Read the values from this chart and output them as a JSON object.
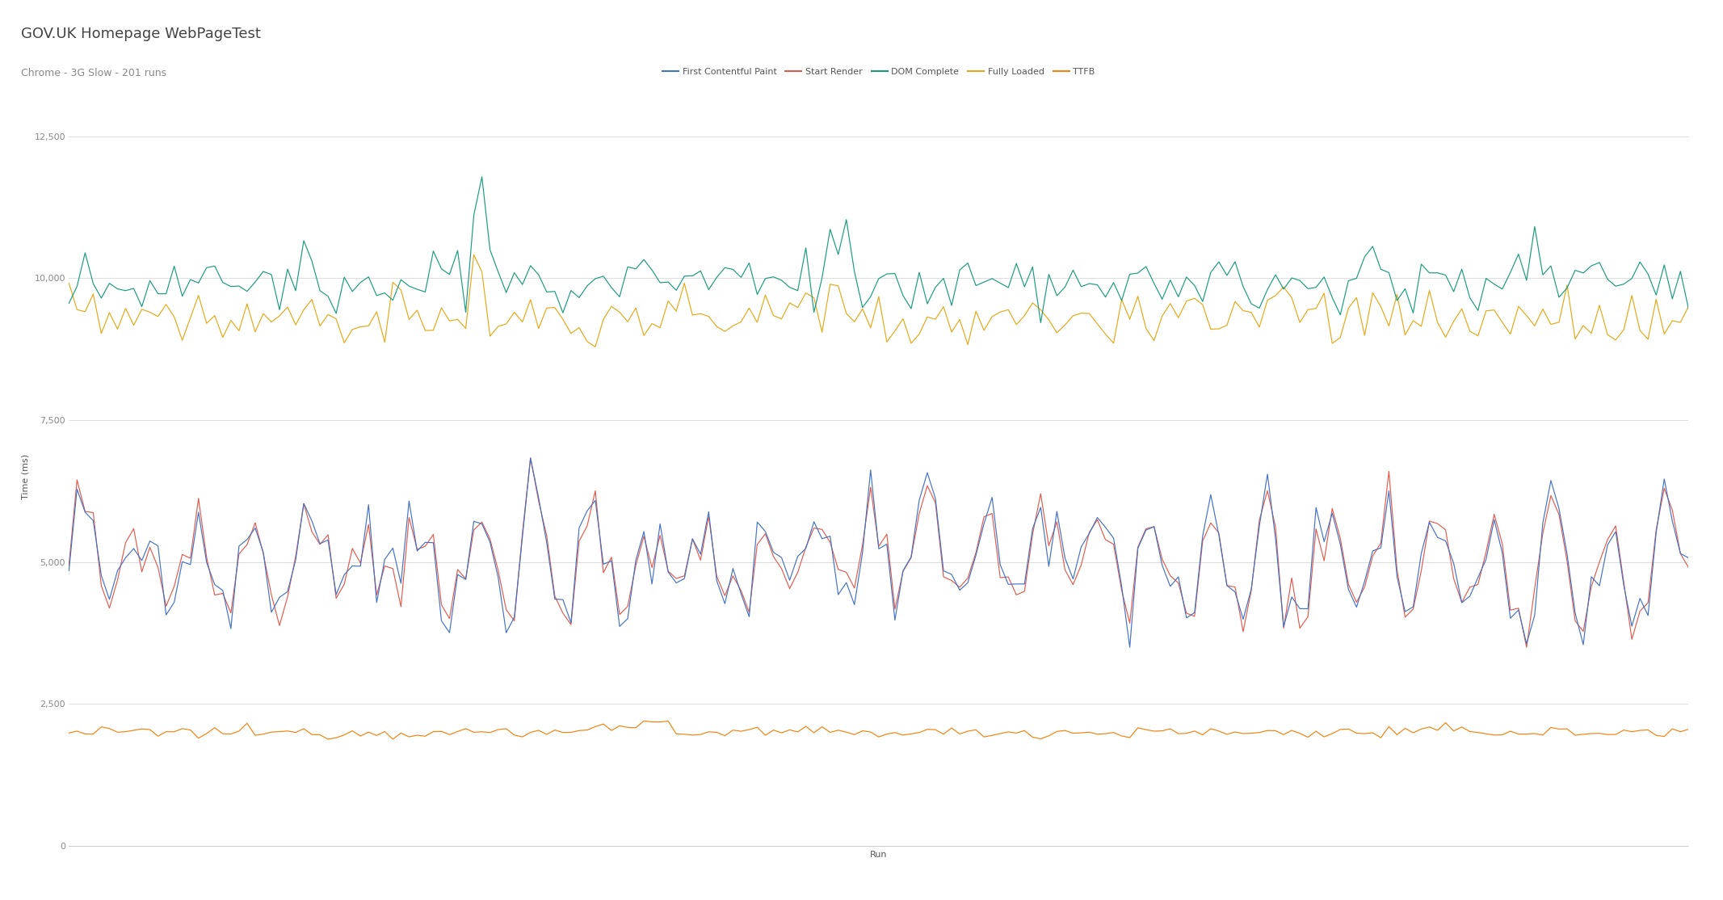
{
  "title": "GOV.UK Homepage WebPageTest",
  "subtitle": "Chrome - 3G Slow - 201 runs",
  "xlabel": "Run",
  "ylabel": "Time (ms)",
  "ylim": [
    0,
    13000
  ],
  "yticks": [
    0,
    2500,
    5000,
    7500,
    10000,
    12500
  ],
  "n_runs": 201,
  "legend_labels": [
    "First Contentful Paint",
    "Start Render",
    "DOM Complete",
    "Fully Loaded",
    "TTFB"
  ],
  "colors": {
    "fcp": "#4472c4",
    "sr": "#e05c4e",
    "dom": "#1a9b80",
    "fl": "#e6a817",
    "ttfb": "#f5820d"
  },
  "background_color": "#ffffff",
  "grid_color": "#d8d8d8",
  "title_color": "#555555",
  "title_fontsize": 13,
  "subtitle_fontsize": 9,
  "legend_fontsize": 8,
  "axis_label_fontsize": 8,
  "tick_fontsize": 8
}
